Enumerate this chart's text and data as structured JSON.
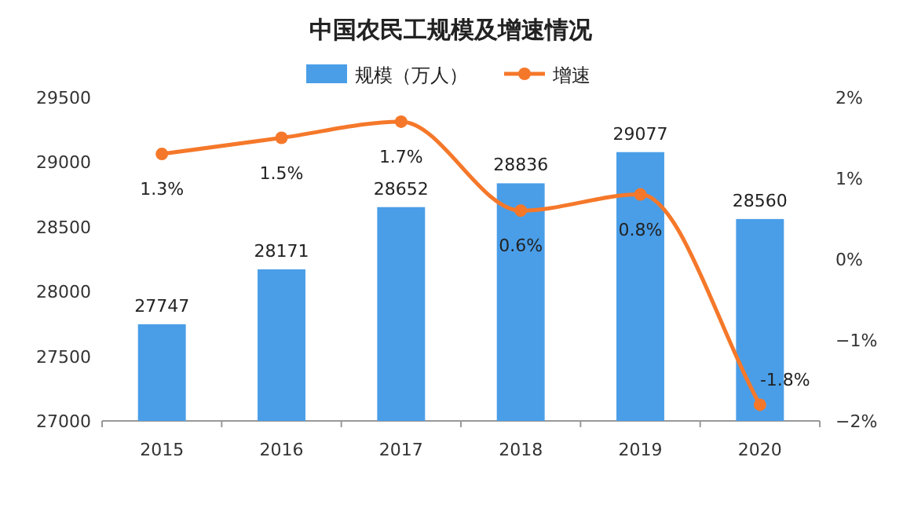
{
  "chart_data": {
    "type": "bar",
    "title": "中国农民工规模及增速情况",
    "categories": [
      "2015",
      "2016",
      "2017",
      "2018",
      "2019",
      "2020"
    ],
    "series": [
      {
        "name": "规模（万人）",
        "color": "#4a9ee8",
        "values": [
          27747,
          28171,
          28652,
          28836,
          29077,
          28560
        ],
        "value_labels": [
          "27747",
          "28171",
          "28652",
          "28836",
          "29077",
          "28560"
        ]
      },
      {
        "name": "增速",
        "type": "line",
        "axis": "y2",
        "color": "#f5782a",
        "marker": "circle",
        "values": [
          1.3,
          1.5,
          1.7,
          0.6,
          0.8,
          -1.8
        ],
        "value_labels": [
          "1.3%",
          "1.5%",
          "1.7%",
          "0.6%",
          "0.8%",
          "-1.8%"
        ]
      }
    ],
    "ylim": [
      27000,
      29500
    ],
    "yticks": [
      27000,
      27500,
      28000,
      28500,
      29000,
      29500
    ],
    "y2lim": [
      -2,
      2
    ],
    "y2ticks": [
      {
        "value": -2,
        "label": "−2%"
      },
      {
        "value": -1,
        "label": "−1%"
      },
      {
        "value": 0,
        "label": "0%"
      },
      {
        "value": 1,
        "label": "1%"
      },
      {
        "value": 2,
        "label": "2%"
      }
    ],
    "legend": "top"
  }
}
